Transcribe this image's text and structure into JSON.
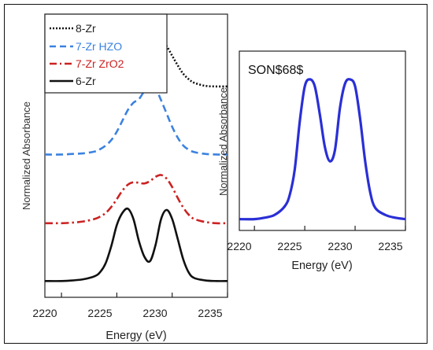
{
  "chart_data": [
    {
      "type": "line",
      "xlabel": "Energy (eV)",
      "ylabel": "Normalized Absorbance",
      "xlim": [
        2218.5,
        2235
      ],
      "xticks": [
        2220,
        2225,
        2230,
        2235
      ],
      "grid": false,
      "legend_position": "top-left",
      "series": [
        {
          "name": "8-Zr",
          "color": "#111111",
          "style": "dotted",
          "x": [
            2218.5,
            2220,
            2221,
            2222,
            2223,
            2223.5,
            2224,
            2224.5,
            2225,
            2225.5,
            2226,
            2226.5,
            2227,
            2227.5,
            2228,
            2228.5,
            2229,
            2229.5,
            2230,
            2230.5,
            2231,
            2231.5,
            2232,
            2233,
            2234,
            2235
          ],
          "y": [
            3.25,
            3.25,
            3.26,
            3.27,
            3.3,
            3.33,
            3.38,
            3.45,
            3.55,
            3.68,
            3.82,
            3.95,
            4.05,
            4.12,
            4.14,
            4.12,
            4.04,
            3.92,
            3.76,
            3.6,
            3.46,
            3.37,
            3.31,
            3.26,
            3.25,
            3.25
          ]
        },
        {
          "name": "7-Zr HZO",
          "color": "#3b82e0",
          "style": "dashed",
          "x": [
            2218.5,
            2220,
            2221,
            2222,
            2223,
            2223.5,
            2224,
            2224.5,
            2225,
            2225.5,
            2226,
            2226.5,
            2227,
            2227.5,
            2228,
            2228.5,
            2229,
            2229.5,
            2230,
            2230.5,
            2231,
            2231.5,
            2232,
            2233,
            2234,
            2235
          ],
          "y": [
            2.12,
            2.12,
            2.13,
            2.14,
            2.17,
            2.21,
            2.27,
            2.36,
            2.5,
            2.68,
            2.86,
            2.98,
            3.04,
            3.18,
            3.29,
            3.22,
            3.02,
            2.8,
            2.58,
            2.4,
            2.27,
            2.2,
            2.16,
            2.13,
            2.12,
            2.12
          ]
        },
        {
          "name": "7-Zr ZrO2",
          "color": "#cc2222",
          "style": "dashdot",
          "x": [
            2218.5,
            2220,
            2221,
            2222,
            2223,
            2223.5,
            2224,
            2224.5,
            2225,
            2225.5,
            2226,
            2226.5,
            2227,
            2227.5,
            2228,
            2228.5,
            2229,
            2229.5,
            2230,
            2230.5,
            2231,
            2231.5,
            2232,
            2233,
            2234,
            2235
          ],
          "y": [
            0.98,
            0.98,
            0.99,
            1.01,
            1.05,
            1.09,
            1.15,
            1.25,
            1.38,
            1.52,
            1.62,
            1.66,
            1.65,
            1.64,
            1.68,
            1.75,
            1.78,
            1.72,
            1.58,
            1.4,
            1.24,
            1.12,
            1.05,
            1.0,
            0.98,
            0.98
          ]
        },
        {
          "name": "6-Zr",
          "color": "#111111",
          "style": "solid",
          "x": [
            2218.5,
            2220,
            2221,
            2222,
            2223,
            2223.5,
            2224,
            2224.5,
            2225,
            2225.5,
            2226,
            2226.5,
            2227,
            2227.5,
            2228,
            2228.5,
            2229,
            2229.5,
            2230,
            2230.5,
            2231,
            2231.5,
            2232,
            2233,
            2234,
            2235
          ],
          "y": [
            0.02,
            0.02,
            0.03,
            0.05,
            0.1,
            0.17,
            0.32,
            0.6,
            0.95,
            1.15,
            1.22,
            1.05,
            0.68,
            0.42,
            0.35,
            0.62,
            1.05,
            1.2,
            1.05,
            0.72,
            0.38,
            0.16,
            0.07,
            0.03,
            0.02,
            0.02
          ]
        }
      ]
    },
    {
      "type": "line",
      "title": "SON$68$",
      "xlabel": "Energy (eV)",
      "ylabel": "Normalized Absorbance",
      "xlim": [
        2218.5,
        2235
      ],
      "xticks": [
        2220,
        2225,
        2230,
        2235
      ],
      "grid": false,
      "series": [
        {
          "color": "#2a2fd6",
          "x": [
            2218.5,
            2220,
            2221,
            2222,
            2223,
            2223.5,
            2224,
            2224.5,
            2225,
            2225.5,
            2226,
            2226.5,
            2227,
            2227.5,
            2228,
            2228.5,
            2229,
            2229.5,
            2230,
            2230.5,
            2231,
            2231.5,
            2232,
            2233,
            2234,
            2235
          ],
          "y": [
            0.01,
            0.01,
            0.02,
            0.04,
            0.1,
            0.18,
            0.36,
            0.7,
            0.95,
            1.0,
            0.95,
            0.75,
            0.52,
            0.42,
            0.5,
            0.8,
            0.97,
            1.0,
            0.95,
            0.72,
            0.42,
            0.2,
            0.09,
            0.04,
            0.02,
            0.01
          ]
        }
      ]
    }
  ]
}
